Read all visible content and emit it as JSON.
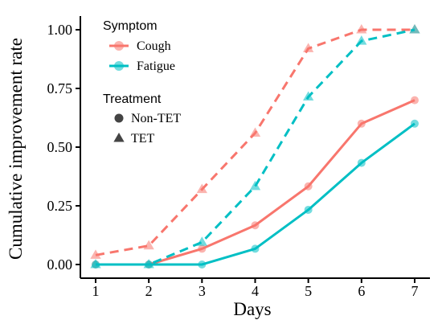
{
  "chart_data": {
    "type": "line",
    "title": "",
    "xlabel": "Days",
    "ylabel": "Cumulative improvement rate",
    "x": [
      1,
      2,
      3,
      4,
      5,
      6,
      7
    ],
    "xlim": [
      1,
      7
    ],
    "ylim": [
      0,
      1
    ],
    "yticks": [
      0.0,
      0.25,
      0.5,
      0.75,
      1.0
    ],
    "ytick_labels": [
      "0.00",
      "0.25",
      "0.50",
      "0.75",
      "1.00"
    ],
    "xtick_labels": [
      "1",
      "2",
      "3",
      "4",
      "5",
      "6",
      "7"
    ],
    "grid": false,
    "legend_position": "top-left",
    "legend": {
      "symptom_title": "Symptom",
      "symptoms": [
        {
          "label": "Cough",
          "color": "#F8766D"
        },
        {
          "label": "Fatigue",
          "color": "#00BFC4"
        }
      ],
      "treatment_title": "Treatment",
      "treatments": [
        {
          "label": "Non-TET",
          "marker": "circle",
          "line": "solid"
        },
        {
          "label": "TET",
          "marker": "triangle",
          "line": "dashed"
        }
      ]
    },
    "series": [
      {
        "symptom": "Cough",
        "treatment": "Non-TET",
        "color": "#F8766D",
        "marker": "circle",
        "line": "solid",
        "values": [
          0.0,
          0.0,
          0.067,
          0.167,
          0.333,
          0.6,
          0.7
        ]
      },
      {
        "symptom": "Cough",
        "treatment": "TET",
        "color": "#F8766D",
        "marker": "triangle",
        "line": "dashed",
        "values": [
          0.04,
          0.08,
          0.32,
          0.56,
          0.92,
          1.0,
          1.0
        ]
      },
      {
        "symptom": "Fatigue",
        "treatment": "Non-TET",
        "color": "#00BFC4",
        "marker": "circle",
        "line": "solid",
        "values": [
          0.0,
          0.0,
          0.0,
          0.067,
          0.233,
          0.433,
          0.6
        ]
      },
      {
        "symptom": "Fatigue",
        "treatment": "TET",
        "color": "#00BFC4",
        "marker": "triangle",
        "line": "dashed",
        "values": [
          0.0,
          0.0,
          0.095,
          0.333,
          0.714,
          0.952,
          1.0
        ]
      }
    ]
  }
}
